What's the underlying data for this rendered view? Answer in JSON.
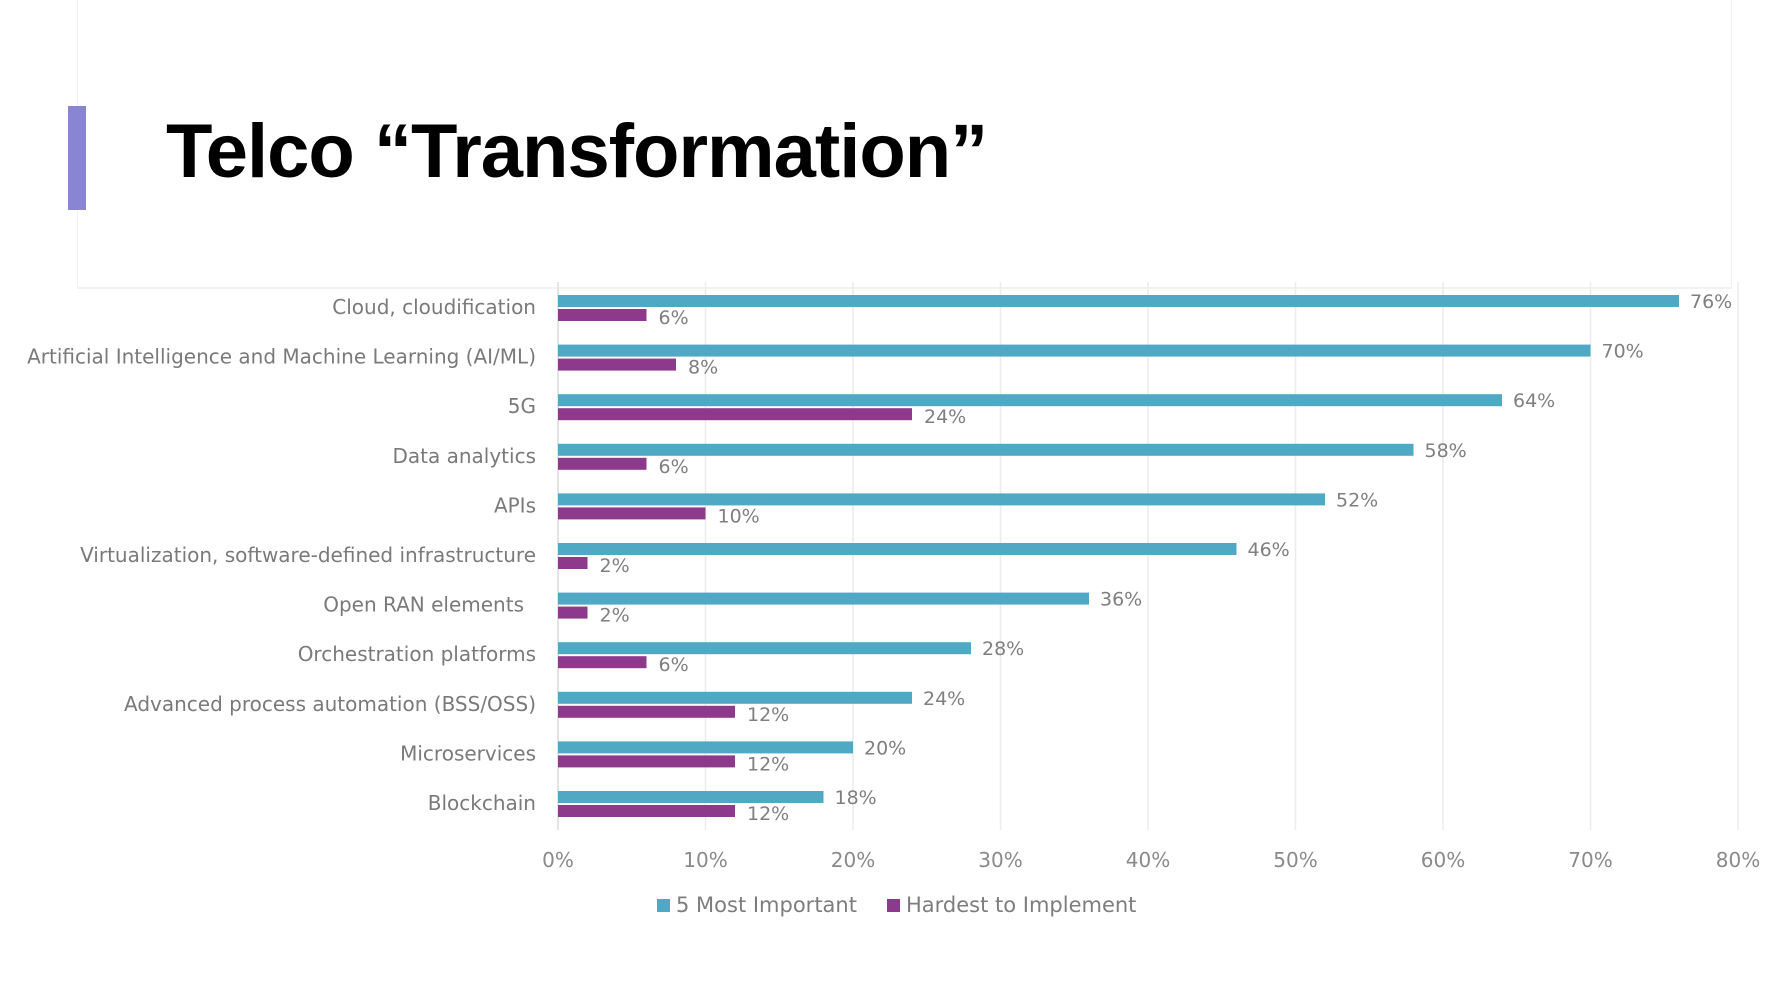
{
  "slide": {
    "title": "Telco “Transformation”",
    "accent_color": "#8a85d2"
  },
  "chart_data": {
    "type": "bar",
    "orientation": "horizontal",
    "title": "",
    "xlabel": "",
    "ylabel": "",
    "xlim": [
      0,
      80
    ],
    "x_ticks": [
      "0%",
      "10%",
      "20%",
      "30%",
      "40%",
      "50%",
      "60%",
      "70%",
      "80%"
    ],
    "grid": true,
    "legend_position": "bottom",
    "categories": [
      "Cloud, cloudification",
      "Artificial Intelligence and Machine Learning (AI/ML)",
      "5G",
      "Data analytics",
      "APIs",
      "Virtualization, software-defined infrastructure",
      "Open RAN elements",
      "Orchestration platforms",
      "Advanced process automation (BSS/OSS)",
      "Microservices",
      "Blockchain"
    ],
    "series": [
      {
        "name": "5 Most Important",
        "color": "#4fa8c4",
        "values": [
          76,
          70,
          64,
          58,
          52,
          46,
          36,
          28,
          24,
          20,
          18
        ],
        "labels": [
          "76%",
          "70%",
          "64%",
          "58%",
          "52%",
          "46%",
          "36%",
          "28%",
          "24%",
          "20%",
          "18%"
        ]
      },
      {
        "name": "Hardest to Implement",
        "color": "#8e3a8c",
        "values": [
          6,
          8,
          24,
          6,
          10,
          2,
          2,
          6,
          12,
          12,
          12
        ],
        "labels": [
          "6%",
          "8%",
          "24%",
          "6%",
          "10%",
          "2%",
          "2%",
          "6%",
          "12%",
          "12%",
          "12%"
        ]
      }
    ]
  }
}
